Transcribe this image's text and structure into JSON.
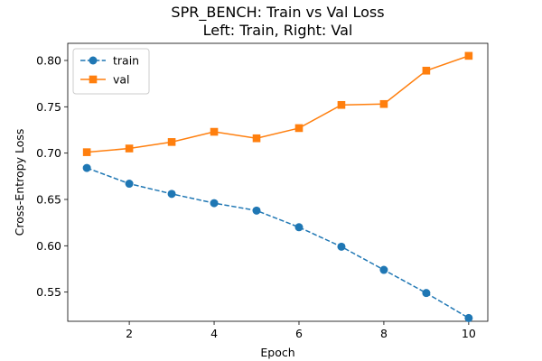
{
  "chart_data": {
    "type": "line",
    "title_line1": "SPR_BENCH: Train vs Val Loss",
    "title_line2": "Left: Train, Right: Val",
    "xlabel": "Epoch",
    "ylabel": "Cross-Entropy Loss",
    "xlim": [
      0.55,
      10.45
    ],
    "ylim": [
      0.5185,
      0.8185
    ],
    "x_ticks": [
      2,
      4,
      6,
      8,
      10
    ],
    "y_ticks": [
      0.55,
      0.6,
      0.65,
      0.7,
      0.75,
      0.8
    ],
    "x_tick_labels": [
      "2",
      "4",
      "6",
      "8",
      "10"
    ],
    "y_tick_labels": [
      "0.55",
      "0.60",
      "0.65",
      "0.70",
      "0.75",
      "0.80"
    ],
    "x": [
      1,
      2,
      3,
      4,
      5,
      6,
      7,
      8,
      9,
      10
    ],
    "series": [
      {
        "name": "train",
        "color": "#1f77b4",
        "linestyle": "dashed",
        "marker": "circle",
        "values": [
          0.684,
          0.667,
          0.656,
          0.646,
          0.638,
          0.62,
          0.599,
          0.574,
          0.549,
          0.522
        ]
      },
      {
        "name": "val",
        "color": "#ff7f0e",
        "linestyle": "solid",
        "marker": "square",
        "values": [
          0.701,
          0.705,
          0.712,
          0.723,
          0.716,
          0.727,
          0.752,
          0.753,
          0.789,
          0.805
        ]
      }
    ],
    "legend_position": "upper-left",
    "grid": false
  }
}
